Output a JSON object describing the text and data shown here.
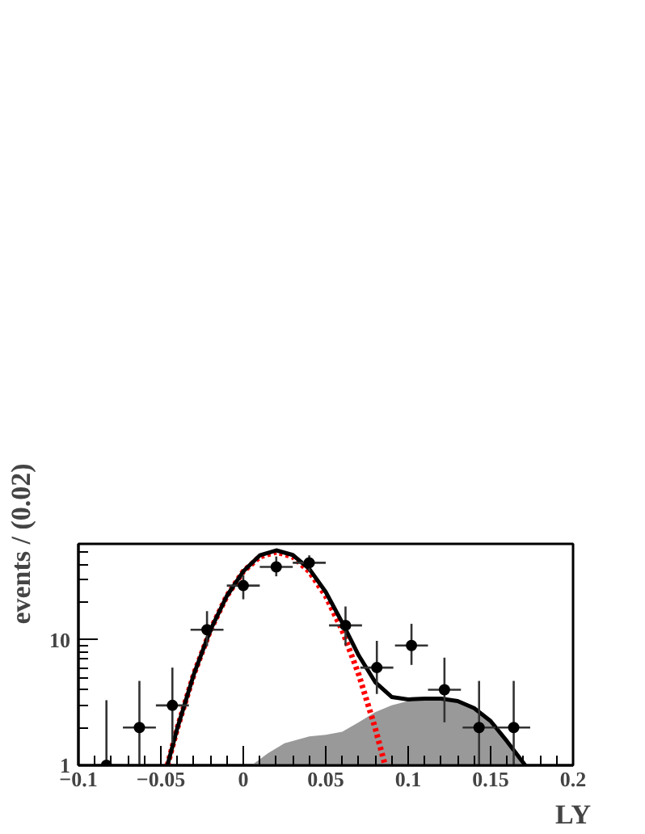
{
  "chart_data": {
    "type": "scatter",
    "xlabel": "LY",
    "ylabel": "events / (0.02)",
    "log": "y",
    "grid": false,
    "xlim": [
      -0.1,
      0.2
    ],
    "xticks": [
      -0.1,
      -0.05,
      0,
      0.05,
      0.1,
      0.15,
      0.2
    ],
    "ylim": [
      1,
      58
    ],
    "yticks": [
      1,
      10
    ],
    "series": [
      {
        "type": "area",
        "color": "#999999",
        "x": [
          0.005,
          0.015,
          0.025,
          0.04,
          0.05,
          0.06,
          0.07,
          0.08,
          0.09,
          0.1,
          0.11,
          0.12,
          0.13,
          0.14,
          0.15,
          0.16,
          0.171
        ],
        "values": [
          1,
          1.25,
          1.5,
          1.7,
          1.75,
          1.85,
          2.2,
          2.65,
          3.0,
          3.25,
          3.35,
          3.35,
          3.2,
          2.8,
          2.2,
          1.5,
          1.0
        ]
      },
      {
        "type": "line",
        "color": "#ff0000",
        "line_style": "dotted",
        "x": [
          -0.046,
          -0.04,
          -0.03,
          -0.02,
          -0.01,
          0,
          0.01,
          0.02,
          0.03,
          0.04,
          0.05,
          0.06,
          0.07,
          0.08,
          0.086
        ],
        "values": [
          1.0,
          1.98,
          5.3,
          11.9,
          22.3,
          35,
          45.8,
          50.1,
          45.8,
          35,
          22.3,
          11.9,
          5.3,
          1.98,
          1.0
        ]
      },
      {
        "type": "line",
        "color": "#000000",
        "line_style": "solid",
        "x": [
          -0.046,
          -0.04,
          -0.03,
          -0.02,
          -0.01,
          0,
          0.01,
          0.02,
          0.03,
          0.04,
          0.05,
          0.06,
          0.07,
          0.08,
          0.09,
          0.1,
          0.11,
          0.12,
          0.13,
          0.14,
          0.15,
          0.16,
          0.171
        ],
        "values": [
          1.0,
          1.98,
          5.3,
          11.9,
          22.3,
          35,
          47,
          51.5,
          47.3,
          36.7,
          24,
          13.7,
          7.5,
          4.6,
          3.5,
          3.35,
          3.4,
          3.4,
          3.25,
          2.85,
          2.25,
          1.55,
          1.0
        ]
      },
      {
        "color": "#000000",
        "marker": "circle",
        "x": [
          -0.083,
          -0.063,
          -0.043,
          -0.022,
          0.0,
          0.02,
          0.04,
          0.062,
          0.081,
          0.102,
          0.122,
          0.143,
          0.164
        ],
        "values": [
          1,
          2,
          3,
          12,
          27,
          38,
          41,
          13,
          6,
          9,
          4,
          2,
          2
        ],
        "errors": [
          [
            1,
            3.3
          ],
          [
            1,
            4.7
          ],
          [
            1.5,
            6
          ],
          [
            8.9,
            16.9
          ],
          [
            21,
            32.6
          ],
          [
            32,
            46
          ],
          [
            35,
            47
          ],
          [
            9,
            18.4
          ],
          [
            3.7,
            9.8
          ],
          [
            6.3,
            13.4
          ],
          [
            2.2,
            7.2
          ],
          [
            1,
            4.7
          ],
          [
            1,
            4.7
          ]
        ],
        "xerrors": [
          0.01,
          0.01,
          0.01,
          0.01,
          0.01,
          0.01,
          0.01,
          0.01,
          0.01,
          0.01,
          0.01,
          0.01,
          0.01
        ]
      }
    ]
  }
}
